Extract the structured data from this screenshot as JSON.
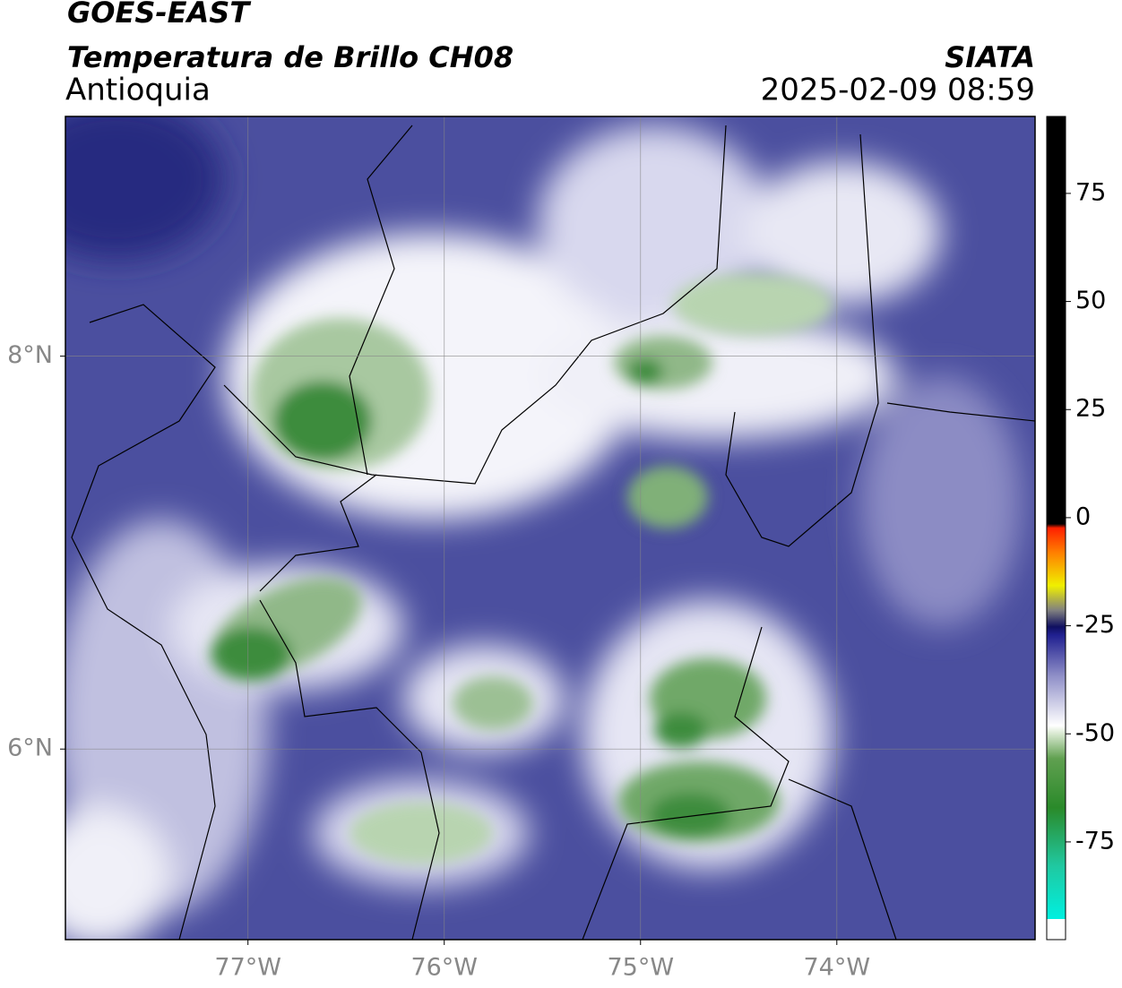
{
  "header": {
    "title": "GOES-EAST",
    "subtitle": "Temperatura de Brillo CH08",
    "region": "Antioquia",
    "source": "SIATA",
    "datetime": "2025-02-09 08:59"
  },
  "map": {
    "lon_lim": [
      -77.93,
      -72.99
    ],
    "lat_lim": [
      5.03,
      9.22
    ],
    "lon_ticks": [
      {
        "value": -77,
        "label": "77°W"
      },
      {
        "value": -76,
        "label": "76°W"
      },
      {
        "value": -75,
        "label": "75°W"
      },
      {
        "value": -74,
        "label": "74°W"
      }
    ],
    "lat_ticks": [
      {
        "value": 8,
        "label": "8°N"
      },
      {
        "value": 6,
        "label": "6°N"
      }
    ]
  },
  "colorbar": {
    "lim": [
      -97.6,
      92.8
    ],
    "ticks": [
      75,
      50,
      25,
      0,
      -25,
      -50,
      -75
    ]
  }
}
